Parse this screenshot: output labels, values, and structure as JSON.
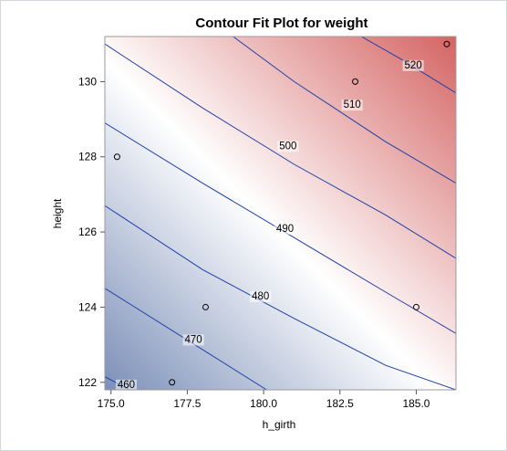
{
  "chart_data": {
    "type": "contour",
    "title": "Contour Fit Plot for weight",
    "xlabel": "h_girth",
    "ylabel": "height",
    "xlim": [
      174.8,
      186.3
    ],
    "ylim": [
      121.8,
      131.2
    ],
    "x_ticks": [
      "175.0",
      "177.5",
      "180.0",
      "182.5",
      "185.0"
    ],
    "x_tick_values": [
      175.0,
      177.5,
      180.0,
      182.5,
      185.0
    ],
    "y_ticks": [
      "122",
      "124",
      "126",
      "128",
      "130"
    ],
    "y_tick_values": [
      122,
      124,
      126,
      128,
      130
    ],
    "contours": [
      {
        "level": 460,
        "label": "460",
        "points": [
          [
            174.8,
            122.15
          ],
          [
            175.6,
            121.8
          ]
        ]
      },
      {
        "level": 470,
        "label": "470",
        "points": [
          [
            174.8,
            124.5
          ],
          [
            180.1,
            121.8
          ]
        ]
      },
      {
        "level": 480,
        "label": "480",
        "points": [
          [
            174.8,
            126.7
          ],
          [
            178.0,
            125.0
          ],
          [
            181.0,
            123.7
          ],
          [
            184.0,
            122.45
          ],
          [
            186.3,
            121.8
          ]
        ]
      },
      {
        "level": 490,
        "label": "490",
        "points": [
          [
            174.8,
            128.9
          ],
          [
            178.0,
            127.3
          ],
          [
            181.0,
            125.85
          ],
          [
            184.0,
            124.4
          ],
          [
            186.3,
            123.3
          ]
        ]
      },
      {
        "level": 500,
        "label": "500",
        "points": [
          [
            174.8,
            131.0
          ],
          [
            178.0,
            129.3
          ],
          [
            181.0,
            127.8
          ],
          [
            184.0,
            126.45
          ],
          [
            186.3,
            125.3
          ]
        ]
      },
      {
        "level": 510,
        "label": "510",
        "points": [
          [
            179.0,
            131.2
          ],
          [
            181.0,
            130.0
          ],
          [
            184.0,
            128.4
          ],
          [
            186.3,
            127.3
          ]
        ]
      },
      {
        "level": 520,
        "label": "520",
        "points": [
          [
            183.2,
            131.2
          ],
          [
            184.5,
            130.6
          ],
          [
            186.3,
            129.7
          ]
        ]
      }
    ],
    "contour_label_positions": [
      {
        "label": "460",
        "x": 175.5,
        "y": 121.95
      },
      {
        "label": "470",
        "x": 177.7,
        "y": 123.15
      },
      {
        "label": "480",
        "x": 179.9,
        "y": 124.3
      },
      {
        "label": "490",
        "x": 180.7,
        "y": 126.1
      },
      {
        "label": "500",
        "x": 180.8,
        "y": 128.3
      },
      {
        "label": "510",
        "x": 182.9,
        "y": 129.4
      },
      {
        "label": "520",
        "x": 184.9,
        "y": 130.45
      }
    ],
    "observations": [
      {
        "x": 175.2,
        "y": 128.0
      },
      {
        "x": 177.0,
        "y": 122.0
      },
      {
        "x": 178.1,
        "y": 124.0
      },
      {
        "x": 183.0,
        "y": 130.0
      },
      {
        "x": 185.0,
        "y": 124.0
      },
      {
        "x": 186.0,
        "y": 131.0
      }
    ],
    "colors": {
      "low": "#7b8fb8",
      "mid": "#ffffff",
      "high": "#d46463",
      "contour_line": "#1f3fa8",
      "marker_edge": "#000000"
    },
    "grid": false,
    "legend": "none"
  }
}
